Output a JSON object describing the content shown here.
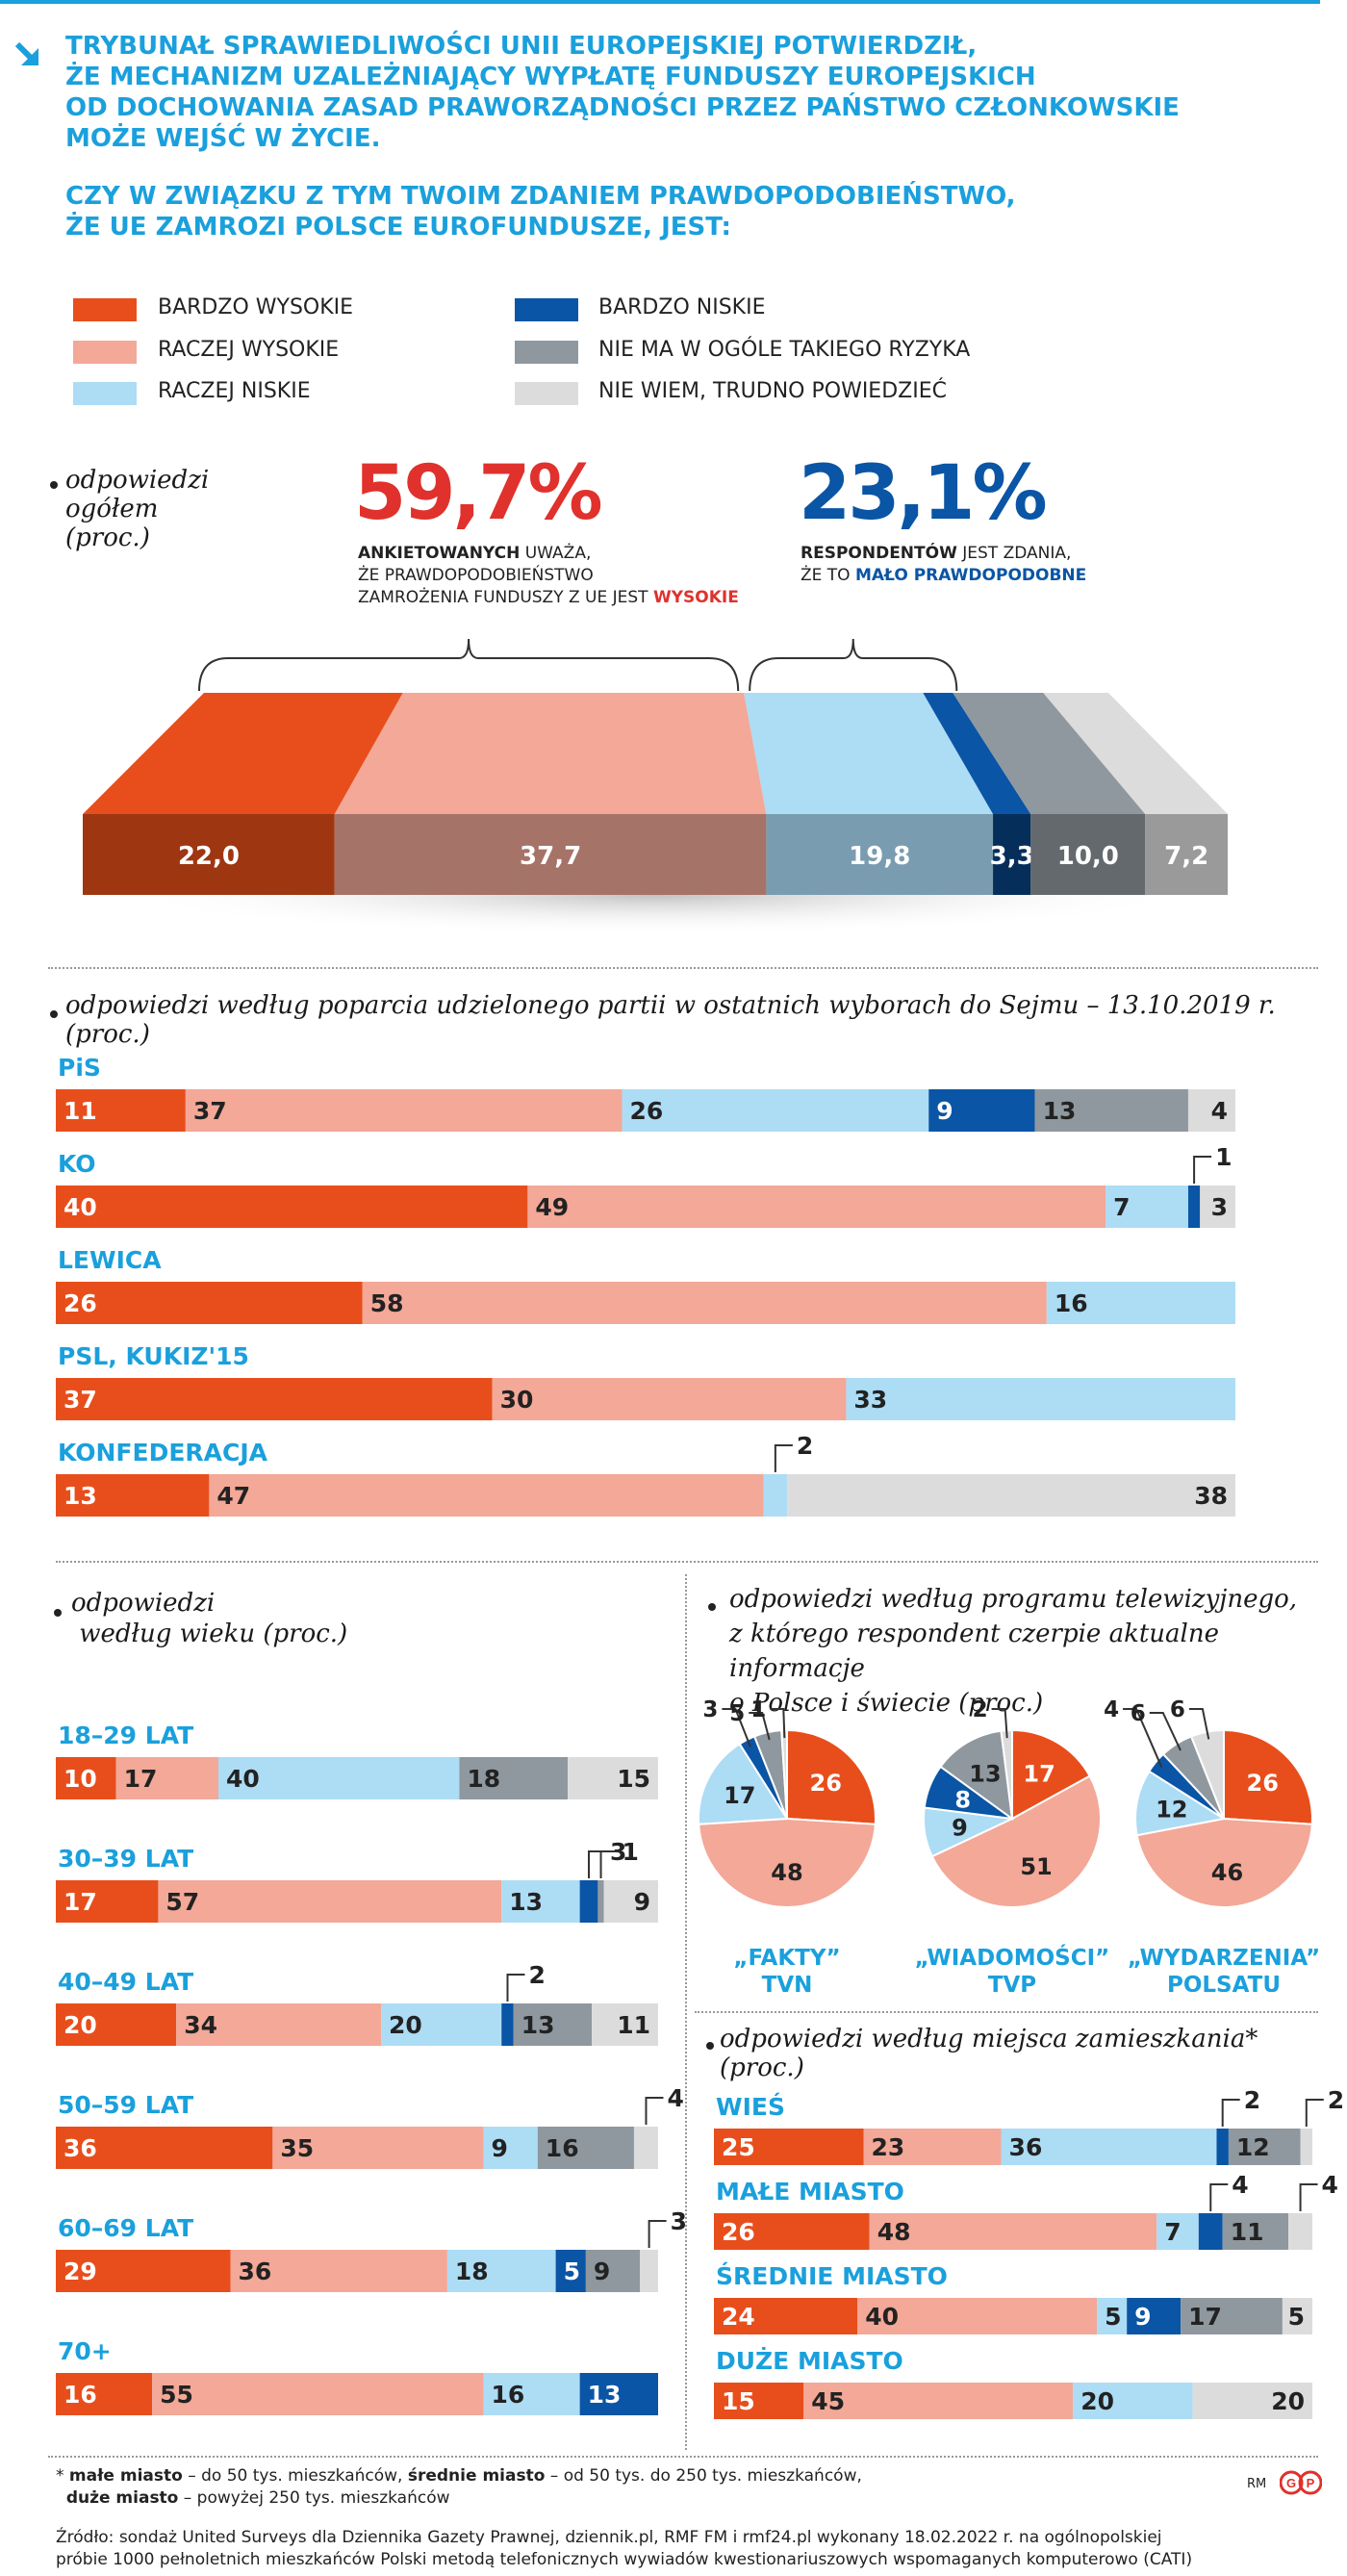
{
  "header": {
    "title_lines": [
      "TRYBUNAŁ SPRAWIEDLIWOŚCI UNII EUROPEJSKIEJ POTWIERDZIŁ,",
      "ŻE MECHANIZM UZALEŻNIAJĄCY WYPŁATĘ FUNDUSZY EUROPEJSKICH",
      "OD DOCHOWANIA ZASAD PRAWORZĄDNOŚCI PRZEZ PAŃSTWO CZŁONKOWSKIE",
      "MOŻE WEJŚĆ W ŻYCIE."
    ],
    "question_lines": [
      "CZY W ZWIĄZKU Z TYM TWOIM ZDANIEM PRAWDOPODOBIEŃSTWO,",
      "ŻE UE ZAMROZI POLSCE EUROFUNDUSZE, JEST:"
    ]
  },
  "colors": {
    "bardzo_wysokie": "#e84e1b",
    "raczej_wysokie": "#f3a898",
    "raczej_niskie": "#addcf5",
    "bardzo_niskie": "#0a55a5",
    "brak_ryzyka": "#8f989f",
    "nie_wiem": "#dcdcdc",
    "accent_blue": "#1aa0dc",
    "accent_red": "#e0312c"
  },
  "legend": [
    {
      "label": "BARDZO WYSOKIE",
      "color": "#e84e1b"
    },
    {
      "label": "RACZEJ WYSOKIE",
      "color": "#f3a898"
    },
    {
      "label": "RACZEJ NISKIE",
      "color": "#addcf5"
    },
    {
      "label": "BARDZO NISKIE",
      "color": "#0a55a5"
    },
    {
      "label": "NIE MA W OGÓLE TAKIEGO RYZYKA",
      "color": "#8f989f"
    },
    {
      "label": "NIE WIEM, TRUDNO POWIEDZIEĆ",
      "color": "#dcdcdc"
    }
  ],
  "overall": {
    "caption_lines": [
      "odpowiedzi",
      "ogółem",
      "(proc.)"
    ],
    "high": {
      "pct": "59,7%",
      "line1_bold": "ANKIETOWANYCH",
      "line1_rest": " UWAŻA,",
      "line2": "ŻE PRAWDOPODOBIEŃSTWO",
      "line3_pre": "ZAMROŻENIA FUNDUSZY Z UE JEST ",
      "line3_em": "WYSOKIE"
    },
    "low": {
      "pct": "23,1%",
      "line1_bold": "RESPONDENTÓW",
      "line1_rest": " JEST ZDANIA,",
      "line2_pre": "ŻE TO ",
      "line2_em": "MAŁO PRAWDOPODOBNE"
    }
  },
  "chart_data": [
    {
      "type": "bar",
      "title": "odpowiedzi ogółem (proc.)",
      "stacked": true,
      "categories": [
        "BARDZO WYSOKIE",
        "RACZEJ WYSOKIE",
        "RACZEJ NISKIE",
        "BARDZO NISKIE",
        "NIE MA W OGÓLE TAKIEGO RYZYKA",
        "NIE WIEM, TRUDNO POWIEDZIEĆ"
      ],
      "values": [
        22.0,
        37.7,
        19.8,
        3.3,
        10.0,
        7.2
      ],
      "labels": [
        "22,0",
        "37,7",
        "19,8",
        "3,3",
        "10,0",
        "7,2"
      ]
    },
    {
      "type": "bar",
      "stacked": true,
      "title": "odpowiedzi według poparcia udzielonego partii w ostatnich wyborach do Sejmu – 13.10.2019 r. (proc.)",
      "rows": [
        {
          "label": "PiS",
          "values": [
            11,
            37,
            26,
            9,
            13,
            4
          ]
        },
        {
          "label": "KO",
          "values": [
            40,
            49,
            7,
            1,
            0,
            3
          ]
        },
        {
          "label": "LEWICA",
          "values": [
            26,
            58,
            16,
            0,
            0,
            0
          ]
        },
        {
          "label": "PSL, KUKIZ'15",
          "values": [
            37,
            30,
            33,
            0,
            0,
            0
          ]
        },
        {
          "label": "KONFEDERACJA",
          "values": [
            13,
            47,
            2,
            0,
            0,
            38
          ]
        }
      ]
    },
    {
      "type": "bar",
      "stacked": true,
      "title": "odpowiedzi według wieku (proc.)",
      "rows": [
        {
          "label": "18–29 LAT",
          "values": [
            10,
            17,
            40,
            0,
            18,
            15
          ]
        },
        {
          "label": "30–39 LAT",
          "values": [
            17,
            57,
            13,
            3,
            1,
            9
          ]
        },
        {
          "label": "40–49 LAT",
          "values": [
            20,
            34,
            20,
            2,
            13,
            11
          ]
        },
        {
          "label": "50–59 LAT",
          "values": [
            36,
            35,
            9,
            0,
            16,
            4
          ]
        },
        {
          "label": "60–69 LAT",
          "values": [
            29,
            36,
            18,
            5,
            9,
            3
          ]
        },
        {
          "label": "70+",
          "values": [
            16,
            55,
            16,
            13,
            0,
            0
          ]
        }
      ]
    },
    {
      "type": "pie",
      "title": "odpowiedzi według programu telewizyjnego, z którego respondent czerpie aktualne informacje o Polsce i świecie (proc.)",
      "pies": [
        {
          "label_lines": [
            "„FAKTY”",
            "TVN"
          ],
          "values": [
            26,
            48,
            17,
            3,
            5,
            1
          ]
        },
        {
          "label_lines": [
            "„WIADOMOŚCI”",
            "TVP"
          ],
          "values": [
            17,
            51,
            9,
            8,
            13,
            2
          ]
        },
        {
          "label_lines": [
            "„WYDARZENIA”",
            "POLSATU"
          ],
          "values": [
            26,
            46,
            12,
            4,
            6,
            6
          ]
        }
      ]
    },
    {
      "type": "bar",
      "stacked": true,
      "title": "odpowiedzi według miejsca zamieszkania* (proc.)",
      "rows": [
        {
          "label": "WIEŚ",
          "values": [
            25,
            23,
            36,
            2,
            12,
            2
          ]
        },
        {
          "label": "MAŁE MIASTO",
          "values": [
            26,
            48,
            7,
            4,
            11,
            4
          ]
        },
        {
          "label": "ŚREDNIE  MIASTO",
          "values": [
            24,
            40,
            5,
            9,
            17,
            5
          ]
        },
        {
          "label": "DUŻE MIASTO",
          "values": [
            15,
            45,
            20,
            0,
            0,
            20
          ]
        }
      ]
    }
  ],
  "footnote": {
    "star": "*",
    "b1": "małe miasto",
    "t1": " – do 50 tys.  mieszkańców, ",
    "b2": "średnie miasto",
    "t2": " – od 50 tys. do 250 tys. mieszkańców,",
    "b3": "duże miasto",
    "t3": " – powyżej 250 tys. mieszkańców"
  },
  "source_lines": [
    "Źródło: sondaż United Surveys dla Dziennika Gazety Prawnej, dziennik.pl, RMF FM i rmf24.pl wykonany 18.02.2022 r. na ogólnopolskiej",
    "próbie 1000 pełnoletnich mieszkańców Polski metodą telefonicznych wywiadów kwestionariuszowych wspomaganych komputerowo (CATI)"
  ],
  "credit": "RM",
  "publisher_logo": "GP"
}
